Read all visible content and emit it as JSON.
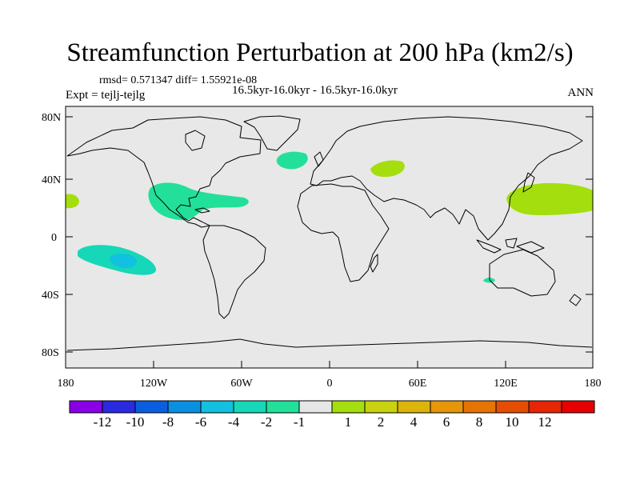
{
  "header": {
    "title": "Streamfunction Perturbation at 200 hPa (km2/s)",
    "stats": "rmsd= 0.571347 diff= 1.55921e-08",
    "experiment": "Expt = tejlj-tejlg",
    "period": "16.5kyr-16.0kyr - 16.5kyr-16.0kyr",
    "season": "ANN"
  },
  "map": {
    "lat_labels": [
      "80N",
      "40N",
      "0",
      "40S",
      "80S"
    ],
    "lon_labels": [
      "180",
      "120W",
      "60W",
      "0",
      "60E",
      "120E",
      "180"
    ],
    "background_color": "#e8e8e8"
  },
  "colorbar": {
    "colors": [
      "#8a00e6",
      "#2a2ae0",
      "#0a5ee0",
      "#0a90e0",
      "#12c0e0",
      "#16d8b8",
      "#22e09a",
      "#e6e6e6",
      "#a4de0e",
      "#c8d20e",
      "#dcb40a",
      "#e69608",
      "#e67404",
      "#e64c04",
      "#e62604",
      "#e60000"
    ],
    "labels": [
      "-12",
      "-10",
      "-8",
      "-6",
      "-4",
      "-2",
      "-1",
      "1",
      "2",
      "4",
      "6",
      "8",
      "10",
      "12"
    ]
  },
  "anomalies": [
    {
      "region": "eastern pacific - mexico",
      "sign": "negative",
      "level": "-1"
    },
    {
      "region": "south pacific",
      "sign": "negative",
      "level": "-2"
    },
    {
      "region": "north atlantic",
      "sign": "negative",
      "level": "-1"
    },
    {
      "region": "caspian",
      "sign": "positive",
      "level": "1"
    },
    {
      "region": "northwest pacific",
      "sign": "positive",
      "level": "1"
    },
    {
      "region": "indian ocean",
      "sign": "negative",
      "level": "-1"
    },
    {
      "region": "dateline",
      "sign": "positive",
      "level": "1"
    }
  ]
}
